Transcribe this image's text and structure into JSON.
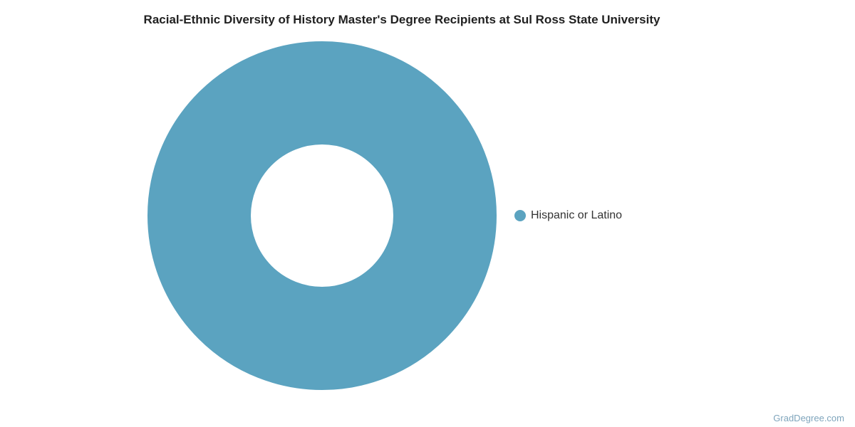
{
  "title": "Racial-Ethnic Diversity of History Master's Degree Recipients at Sul Ross State University",
  "watermark": "GradDegree.com",
  "chart_data": {
    "type": "pie",
    "subtype": "donut",
    "title": "Racial-Ethnic Diversity of History Master's Degree Recipients at Sul Ross State University",
    "labels": [
      "Hispanic or Latino"
    ],
    "values": [
      100
    ],
    "unit": "percent",
    "colors": [
      "#5BA3C0"
    ],
    "inner_radius_ratio": 0.41,
    "legend_position": "right",
    "grid": false
  },
  "legend": {
    "items": [
      {
        "label": "Hispanic or Latino",
        "color": "#5BA3C0"
      }
    ]
  }
}
